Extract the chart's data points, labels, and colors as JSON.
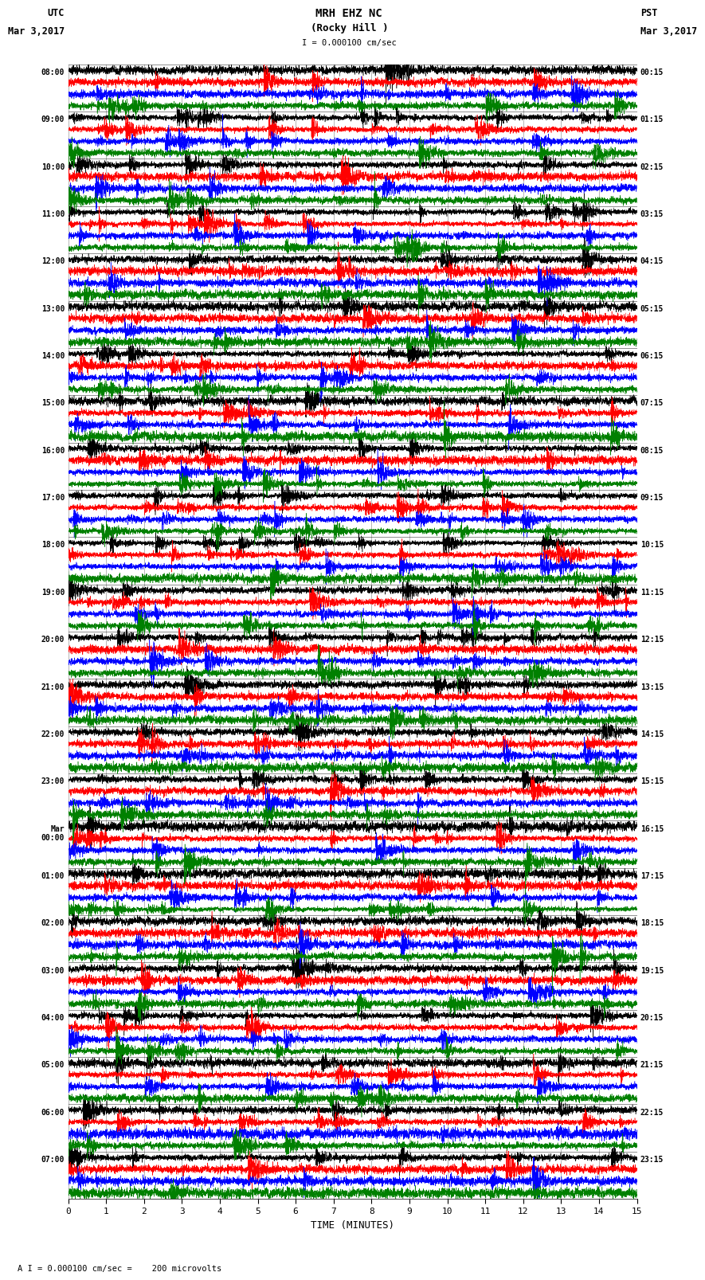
{
  "title_line1": "MRH EHZ NC",
  "title_line2": "(Rocky Hill )",
  "scale_label": "I = 0.000100 cm/sec",
  "left_header_line1": "UTC",
  "left_header_line2": "Mar 3,2017",
  "right_header_line1": "PST",
  "right_header_line2": "Mar 3,2017",
  "bottom_label": "TIME (MINUTES)",
  "bottom_note": "A I = 0.000100 cm/sec =    200 microvolts",
  "utc_times": [
    "08:00",
    "09:00",
    "10:00",
    "11:00",
    "12:00",
    "13:00",
    "14:00",
    "15:00",
    "16:00",
    "17:00",
    "18:00",
    "19:00",
    "20:00",
    "21:00",
    "22:00",
    "23:00",
    "Mar\n00:00",
    "01:00",
    "02:00",
    "03:00",
    "04:00",
    "05:00",
    "06:00",
    "07:00"
  ],
  "pst_times": [
    "00:15",
    "01:15",
    "02:15",
    "03:15",
    "04:15",
    "05:15",
    "06:15",
    "07:15",
    "08:15",
    "09:15",
    "10:15",
    "11:15",
    "12:15",
    "13:15",
    "14:15",
    "15:15",
    "16:15",
    "17:15",
    "18:15",
    "19:15",
    "20:15",
    "21:15",
    "22:15",
    "23:15"
  ],
  "num_rows": 24,
  "traces_per_row": 4,
  "fig_width": 8.5,
  "fig_height": 16.13,
  "bg_color": "white",
  "trace_colors": [
    "black",
    "red",
    "blue",
    "green"
  ],
  "x_min": 0,
  "x_max": 15,
  "x_ticks": [
    0,
    1,
    2,
    3,
    4,
    5,
    6,
    7,
    8,
    9,
    10,
    11,
    12,
    13,
    14,
    15
  ],
  "row_amplitudes": [
    0.6,
    0.7,
    0.8,
    0.7,
    0.8,
    0.9,
    3.5,
    4.0,
    4.5,
    4.0,
    3.5,
    2.0,
    1.5,
    1.2,
    1.0,
    0.9,
    0.8,
    1.5,
    1.2,
    1.0,
    1.5,
    2.5,
    1.0,
    1.5
  ]
}
